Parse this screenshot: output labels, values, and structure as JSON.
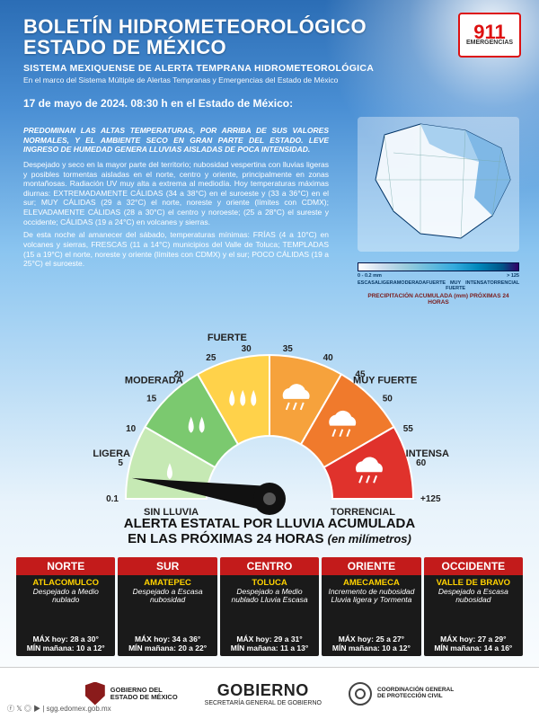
{
  "colors": {
    "red": "#c31b1b",
    "yellow": "#ffd200",
    "region_head_bg": [
      "#c31b1b",
      "#c31b1b",
      "#c31b1b",
      "#c31b1b",
      "#c31b1b"
    ],
    "region_body_bg": "#1a1a1a"
  },
  "emergency": {
    "number": "911",
    "label": "EMERGENCIAS"
  },
  "header": {
    "title_l1": "BOLETÍN HIDROMETEOROLÓGICO",
    "title_l2": "ESTADO DE MÉXICO",
    "subtitle": "SISTEMA MEXIQUENSE DE ALERTA TEMPRANA HIDROMETEOROLÓGICA",
    "subtext": "En el marco del Sistema Múltiple de Alertas Tempranas y Emergencias del Estado de México",
    "dateline": "17 de mayo de 2024.  08:30 h en el Estado de México:"
  },
  "summary": {
    "lead": "PREDOMINAN LAS ALTAS TEMPERATURAS, POR ARRIBA DE SUS VALORES NORMALES, Y EL AMBIENTE SECO EN GRAN PARTE DEL ESTADO. LEVE INGRESO DE HUMEDAD GENERA LLUVIAS AISLADAS DE POCA INTENSIDAD.",
    "p1": "Despejado y seco en la mayor parte del territorio; nubosidad vespertina con lluvias ligeras y posibles tormentas aisladas en el norte, centro y oriente, principalmente en zonas montañosas. Radiación UV muy alta a extrema al mediodía. Hoy temperaturas máximas diurnas: EXTREMADAMENTE CÁLIDAS (34 a 38°C) en el suroeste y (33 a 36°C) en el sur; MUY CÁLIDAS (29 a 32°C) el norte, noreste y oriente (límites con CDMX); ELEVADAMENTE CÁLIDAS (28 a 30°C) el centro y noroeste; (25 a 28°C) el sureste y occidente; CÁLIDAS (19 a 24°C) en volcanes y sierras.",
    "p2": "De esta noche al amanecer del sábado, temperaturas mínimas: FRÍAS (4 a 10°C) en volcanes y sierras, FRESCAS (11 a 14°C) municipios del Valle de Toluca; TEMPLADAS (15 a 19°C) el norte, noreste y oriente (límites con CDMX) y el sur; POCO CÁLIDAS (19 a 25°C) el suroeste."
  },
  "precip_legend": {
    "scale_left": "0 - 0.2 mm",
    "tags": [
      "ESCASA",
      "LIGERA",
      "MODERADA",
      "FUERTE",
      "MUY FUERTE",
      "INTENSA",
      "TORRENCIAL"
    ],
    "scale_right": "> 125",
    "caption": "PRECIPITACIÓN ACUMULADA (mm) PRÓXIMAS 24 HORAS"
  },
  "gauge": {
    "segments": [
      {
        "label": "LIGERA",
        "color": "#c6e9b4"
      },
      {
        "label": "MODERADA",
        "color": "#7bc96f"
      },
      {
        "label": "FUERTE",
        "color": "#ffd24a"
      },
      {
        "label": "",
        "color": "#f6a23c"
      },
      {
        "label": "MUY FUERTE",
        "color": "#f07a2c"
      },
      {
        "label": "INTENSA",
        "color": "#e0322c"
      }
    ],
    "ticks": [
      "0.1",
      "5",
      "10",
      "15",
      "20",
      "25",
      "30",
      "35",
      "40",
      "45",
      "50",
      "55",
      "60",
      "+125"
    ],
    "bottom_left": "SIN LLUVIA",
    "bottom_right": "TORRENCIAL",
    "title_l1": "ALERTA ESTATAL POR LLUVIA ACUMULADA",
    "title_l2": "EN LAS PRÓXIMAS 24 HORAS",
    "title_l2_suffix": "(en milímetros)"
  },
  "regions": [
    {
      "name": "NORTE",
      "city": "ATLACOMULCO",
      "cond": "Despejado a Medio nublado",
      "max": "MÁX hoy: 28 a 30°",
      "min": "MÍN mañana: 10 a 12°"
    },
    {
      "name": "SUR",
      "city": "AMATEPEC",
      "cond": "Despejado a Escasa nubosidad",
      "max": "MÁX hoy: 34 a 36°",
      "min": "MÍN mañana: 20 a 22°"
    },
    {
      "name": "CENTRO",
      "city": "TOLUCA",
      "cond": "Despejado a Medio nublado Lluvia Escasa",
      "max": "MÁX hoy: 29 a 31°",
      "min": "MÍN mañana: 11 a 13°"
    },
    {
      "name": "ORIENTE",
      "city": "AMECAMECA",
      "cond": "Incremento de nubosidad Lluvia ligera y Tormenta",
      "max": "MÁX hoy: 25 a 27°",
      "min": "MÍN mañana: 10 a 12°"
    },
    {
      "name": "OCCIDENTE",
      "city": "VALLE DE BRAVO",
      "cond": "Despejado a Escasa nubosidad",
      "max": "MÁX hoy: 27 a 29°",
      "min": "MÍN mañana: 14 a 16°"
    }
  ],
  "footer": {
    "agency1_l1": "GOBIERNO DEL",
    "agency1_l2": "ESTADO DE MÉXICO",
    "gob": "GOBIERNO",
    "gob_sub": "SECRETARÍA GENERAL DE GOBIERNO",
    "pc_l1": "COORDINACIÓN GENERAL",
    "pc_l2": "DE PROTECCIÓN CIVIL",
    "social": "sgg.edomex.gob.mx"
  }
}
